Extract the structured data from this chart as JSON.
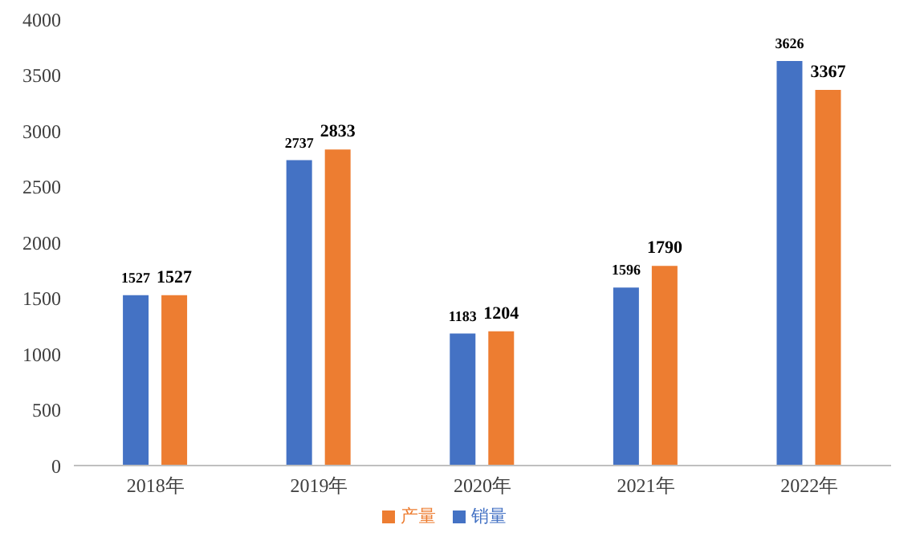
{
  "chart_data": {
    "type": "bar",
    "categories": [
      "2018年",
      "2019年",
      "2020年",
      "2021年",
      "2022年"
    ],
    "series": [
      {
        "name": "销量",
        "color": "#4472c4",
        "values": [
          1527,
          2737,
          1183,
          1596,
          3626
        ]
      },
      {
        "name": "产量",
        "color": "#ed7d31",
        "values": [
          1527,
          2833,
          1204,
          1790,
          3367
        ]
      }
    ],
    "ylim": [
      0,
      4000
    ],
    "yticks": [
      0,
      500,
      1000,
      1500,
      2000,
      2500,
      3000,
      3500,
      4000
    ],
    "grid": false,
    "legend": "bottom",
    "data_labels": true
  }
}
